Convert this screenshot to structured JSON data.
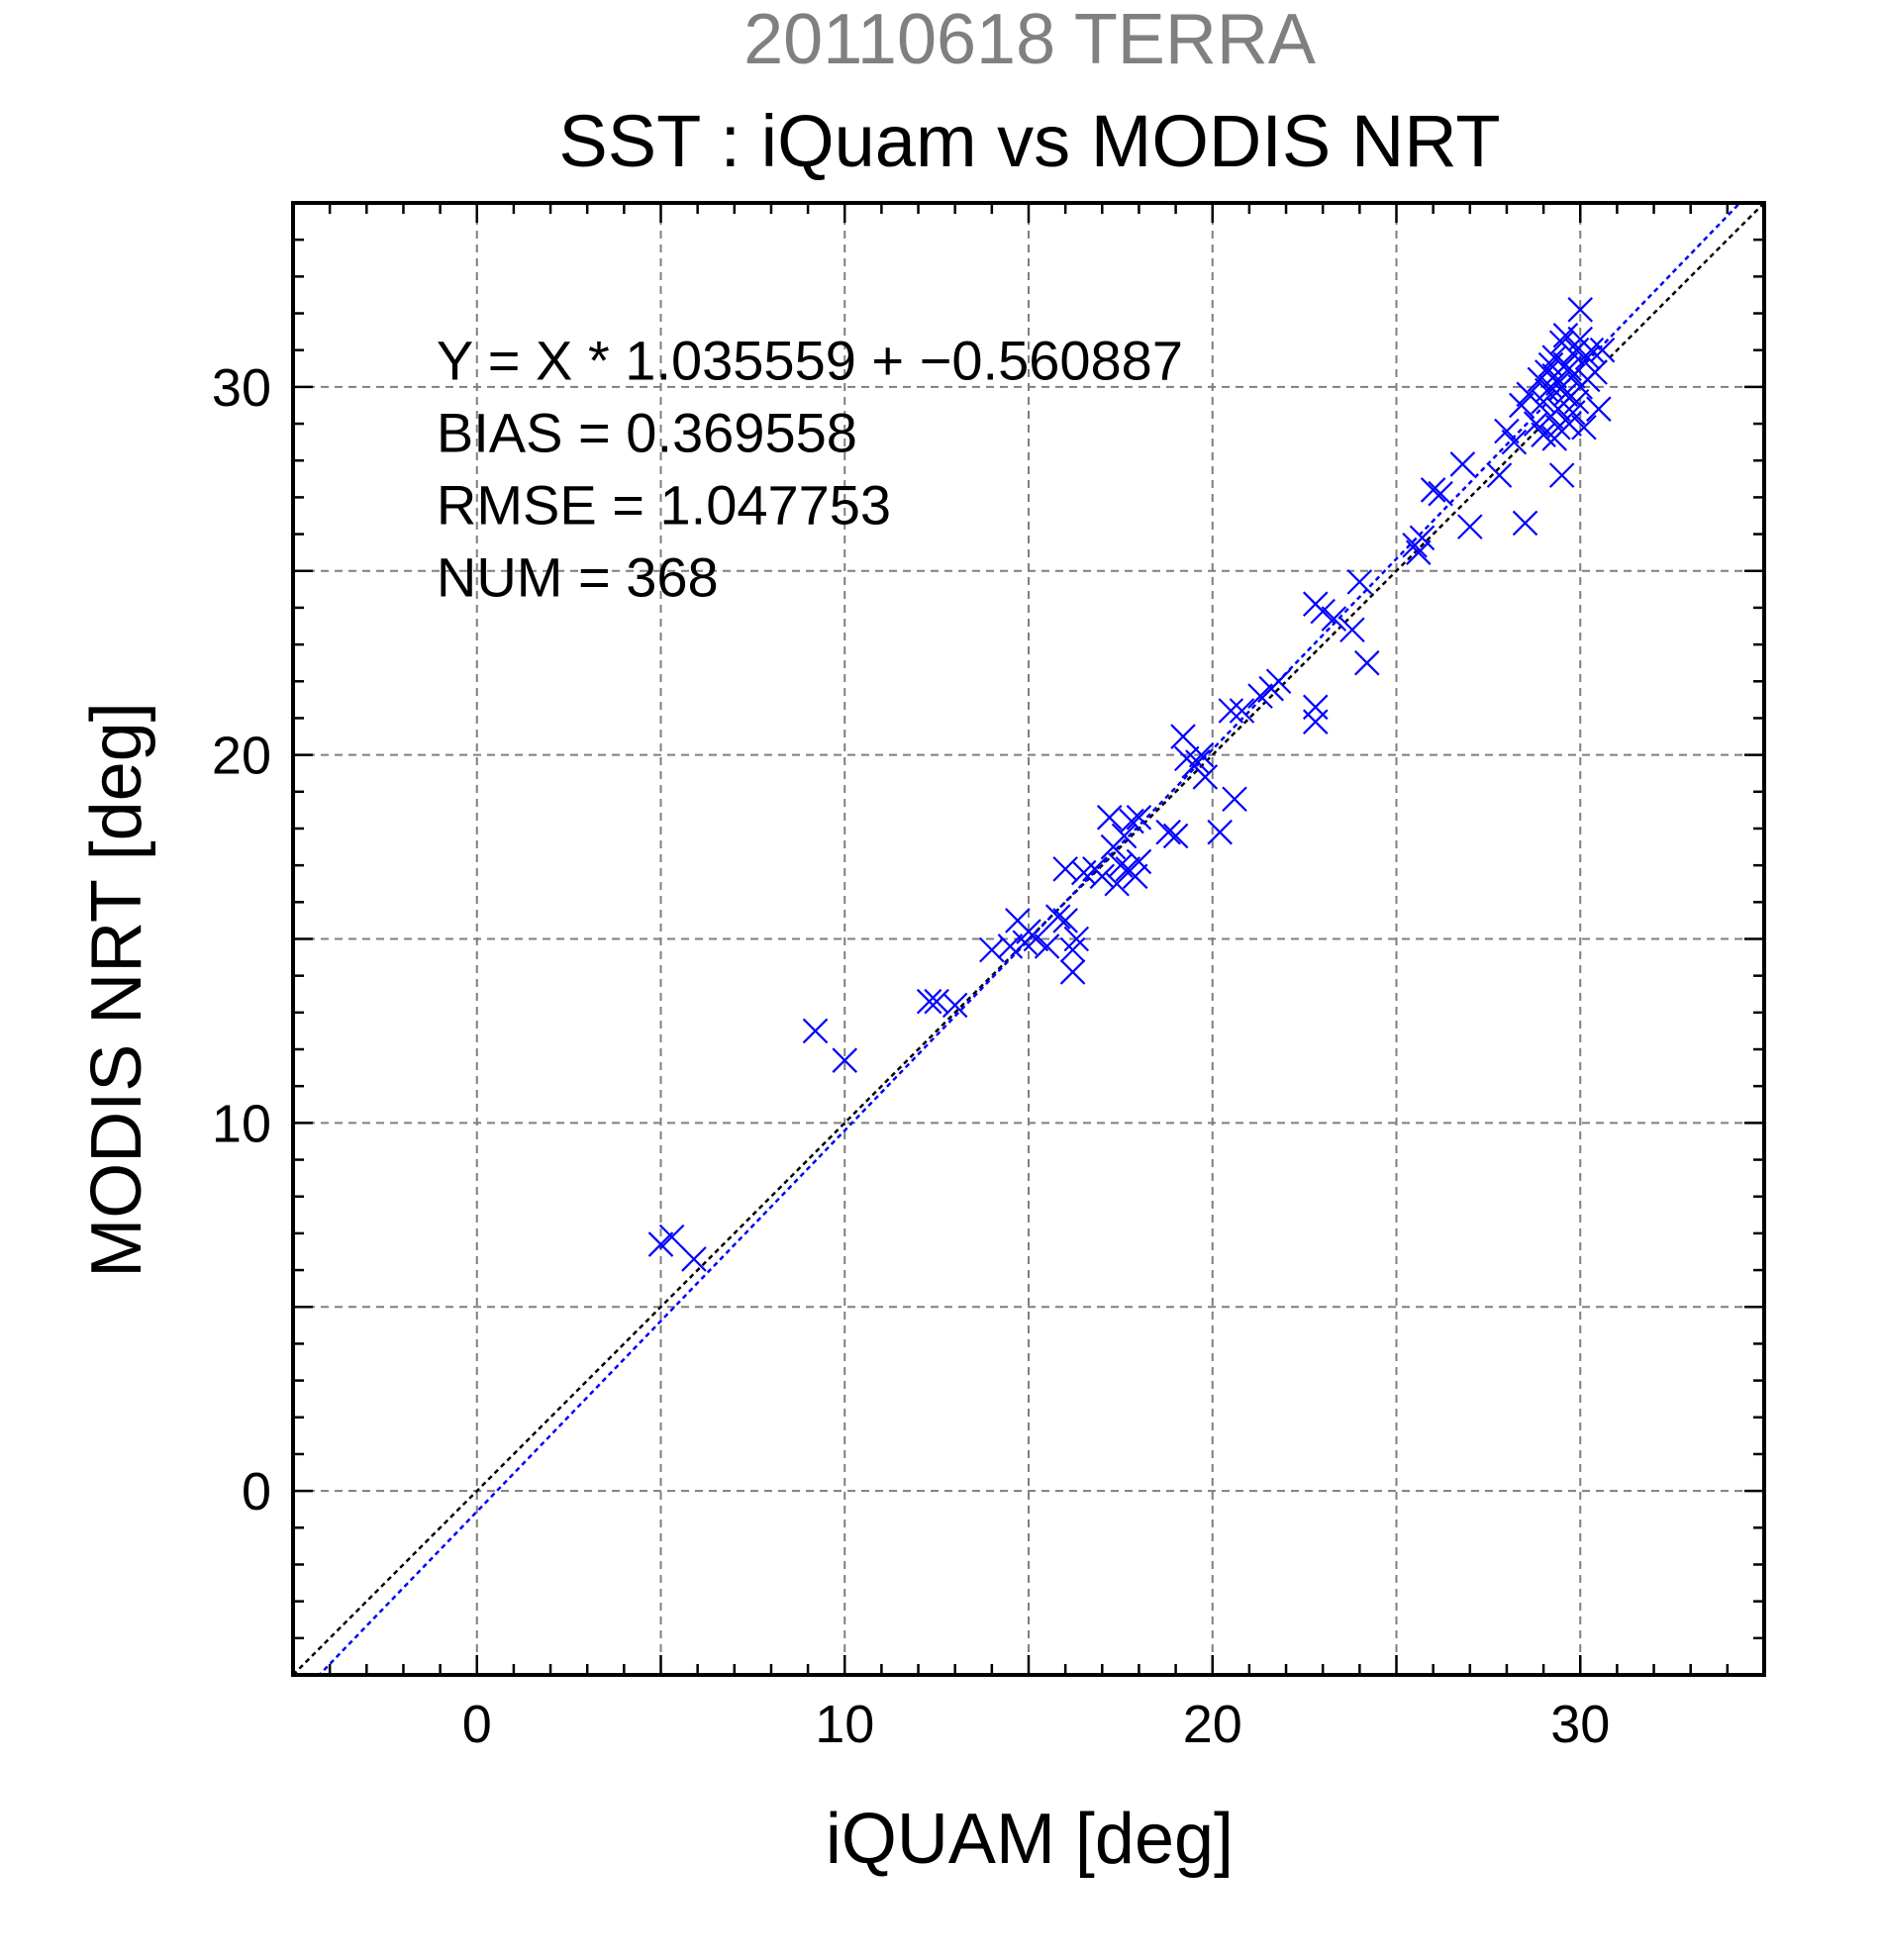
{
  "chart_data": {
    "type": "scatter",
    "supertitle": "20110618 TERRA",
    "title": "SST : iQuam vs MODIS NRT",
    "xlabel": "iQUAM [deg]",
    "ylabel": "MODIS NRT [deg]",
    "xlim": [
      -5,
      35
    ],
    "ylim": [
      -5,
      35
    ],
    "xticks": [
      0,
      10,
      20,
      30
    ],
    "yticks": [
      0,
      10,
      20,
      30
    ],
    "minor_tick_step": 1,
    "grid_step": 5,
    "grid": true,
    "marker": "x",
    "colors": {
      "points": "#0000ff",
      "fit_line": "#0000ff",
      "identity_line": "#000000"
    },
    "stats": [
      "Y = X * 1.035559 + −0.560887",
      "BIAS = 0.369558",
      "RMSE = 1.047753",
      "NUM = 368"
    ],
    "fit": {
      "slope": 1.035559,
      "intercept": -0.560887
    },
    "points": [
      [
        5.0,
        6.7
      ],
      [
        5.3,
        6.9
      ],
      [
        5.9,
        6.3
      ],
      [
        9.2,
        12.5
      ],
      [
        10.0,
        11.7
      ],
      [
        12.3,
        13.3
      ],
      [
        12.5,
        13.3
      ],
      [
        13.0,
        13.2
      ],
      [
        14.0,
        14.7
      ],
      [
        14.5,
        14.8
      ],
      [
        14.7,
        15.5
      ],
      [
        14.9,
        14.9
      ],
      [
        15.0,
        15.2
      ],
      [
        15.2,
        15.0
      ],
      [
        15.5,
        14.8
      ],
      [
        15.8,
        15.6
      ],
      [
        16.0,
        15.5
      ],
      [
        16.0,
        16.9
      ],
      [
        16.2,
        14.1
      ],
      [
        16.2,
        14.7
      ],
      [
        16.3,
        15.0
      ],
      [
        16.5,
        16.8
      ],
      [
        16.8,
        16.9
      ],
      [
        17.0,
        16.7
      ],
      [
        17.2,
        18.3
      ],
      [
        17.3,
        17.5
      ],
      [
        17.4,
        16.5
      ],
      [
        17.5,
        17.0
      ],
      [
        17.6,
        17.8
      ],
      [
        17.7,
        16.9
      ],
      [
        17.8,
        18.2
      ],
      [
        17.9,
        16.7
      ],
      [
        18.0,
        18.3
      ],
      [
        18.0,
        17.1
      ],
      [
        18.8,
        17.9
      ],
      [
        19.0,
        17.8
      ],
      [
        19.2,
        20.5
      ],
      [
        19.3,
        19.9
      ],
      [
        19.5,
        19.7
      ],
      [
        19.6,
        19.8
      ],
      [
        19.7,
        20.0
      ],
      [
        19.8,
        19.4
      ],
      [
        20.2,
        17.9
      ],
      [
        20.6,
        18.8
      ],
      [
        20.5,
        21.2
      ],
      [
        20.8,
        21.2
      ],
      [
        21.3,
        21.6
      ],
      [
        21.6,
        21.8
      ],
      [
        21.8,
        22.0
      ],
      [
        22.8,
        21.3
      ],
      [
        22.8,
        20.9
      ],
      [
        22.8,
        24.1
      ],
      [
        23.0,
        23.9
      ],
      [
        23.3,
        23.7
      ],
      [
        23.8,
        23.4
      ],
      [
        24.0,
        24.7
      ],
      [
        24.2,
        22.5
      ],
      [
        25.5,
        25.7
      ],
      [
        25.6,
        25.5
      ],
      [
        25.7,
        25.9
      ],
      [
        26.0,
        27.2
      ],
      [
        26.2,
        27.1
      ],
      [
        26.8,
        27.9
      ],
      [
        27.0,
        26.2
      ],
      [
        27.8,
        27.6
      ],
      [
        28.0,
        28.8
      ],
      [
        28.2,
        28.5
      ],
      [
        28.5,
        26.3
      ],
      [
        28.4,
        29.5
      ],
      [
        28.6,
        29.8
      ],
      [
        28.8,
        29.0
      ],
      [
        28.9,
        30.2
      ],
      [
        29.0,
        29.6
      ],
      [
        29.0,
        28.7
      ],
      [
        29.1,
        30.4
      ],
      [
        29.2,
        30.0
      ],
      [
        29.2,
        29.2
      ],
      [
        29.3,
        30.8
      ],
      [
        29.3,
        28.6
      ],
      [
        29.4,
        30.1
      ],
      [
        29.4,
        29.4
      ],
      [
        29.5,
        27.6
      ],
      [
        29.5,
        31.2
      ],
      [
        29.6,
        30.6
      ],
      [
        29.6,
        29.8
      ],
      [
        29.7,
        29.0
      ],
      [
        29.8,
        30.9
      ],
      [
        29.8,
        30.3
      ],
      [
        29.9,
        29.6
      ],
      [
        30.0,
        32.1
      ],
      [
        30.0,
        31.3
      ],
      [
        30.0,
        30.0
      ],
      [
        30.1,
        28.9
      ],
      [
        30.2,
        30.8
      ],
      [
        30.3,
        31.0
      ],
      [
        30.4,
        30.4
      ],
      [
        30.5,
        29.4
      ],
      [
        30.6,
        31.0
      ],
      [
        29.1,
        29.9
      ],
      [
        29.3,
        30.3
      ],
      [
        29.5,
        30.0
      ],
      [
        29.7,
        30.5
      ],
      [
        29.9,
        31.0
      ],
      [
        29.2,
        30.6
      ],
      [
        29.6,
        31.4
      ],
      [
        29.8,
        29.3
      ],
      [
        30.2,
        30.2
      ],
      [
        29.4,
        28.9
      ]
    ]
  }
}
